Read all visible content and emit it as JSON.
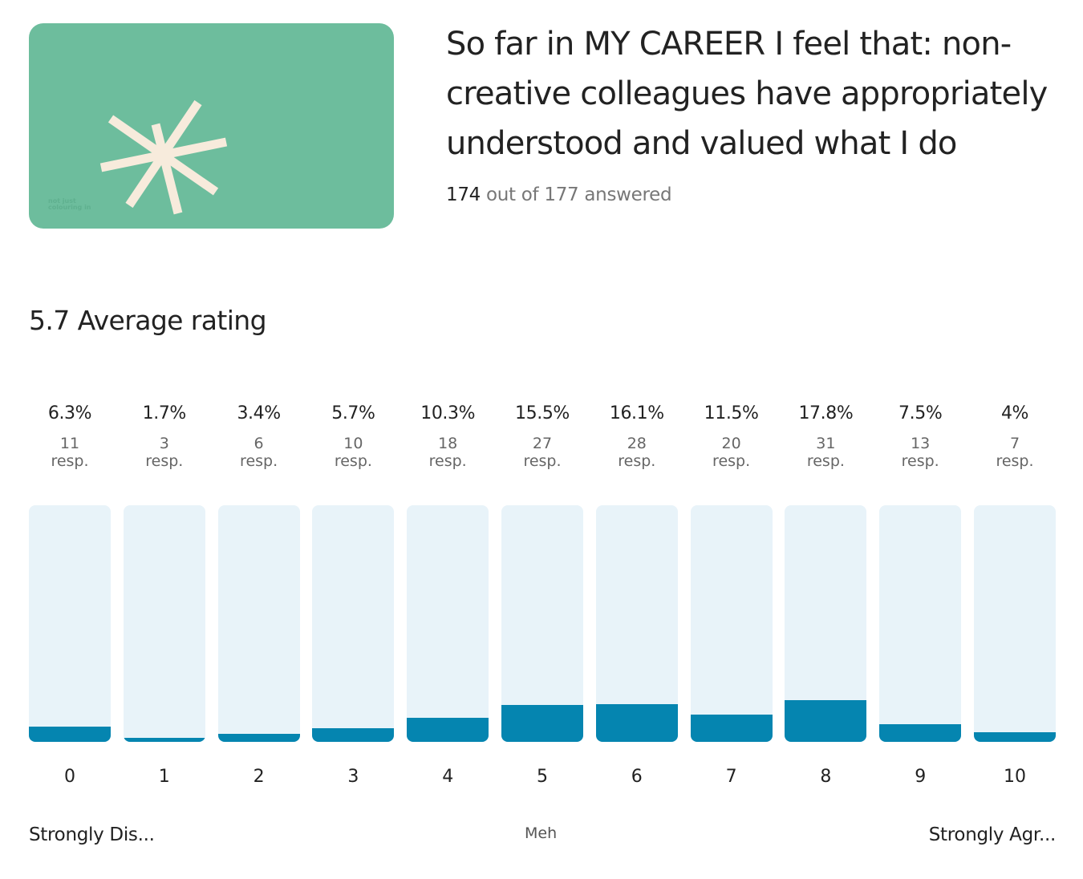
{
  "header": {
    "brand_logo_text": "not just colouring in",
    "title": "So far in MY CAREER I feel that: non-creative colleagues have appropriately understood and valued what I do",
    "answered_count": "174",
    "answered_rest": " out of 177 answered"
  },
  "summary": {
    "average_label": "5.7 Average rating"
  },
  "colors": {
    "card": "#6dbd9d",
    "star": "#f7ebdc",
    "track": "#e8f3f9",
    "fill": "#0585b0"
  },
  "chart_data": {
    "type": "bar",
    "categories": [
      "0",
      "1",
      "2",
      "3",
      "4",
      "5",
      "6",
      "7",
      "8",
      "9",
      "10"
    ],
    "percent_labels": [
      "6.3%",
      "1.7%",
      "3.4%",
      "5.7%",
      "10.3%",
      "15.5%",
      "16.1%",
      "11.5%",
      "17.8%",
      "7.5%",
      "4%"
    ],
    "values": [
      6.3,
      1.7,
      3.4,
      5.7,
      10.3,
      15.5,
      16.1,
      11.5,
      17.8,
      7.5,
      4
    ],
    "counts": [
      "11",
      "3",
      "6",
      "10",
      "18",
      "27",
      "28",
      "20",
      "31",
      "13",
      "7"
    ],
    "count_unit": "resp.",
    "ylim": [
      0,
      100
    ]
  },
  "scale_labels": {
    "low": "Strongly Dis...",
    "mid": "Meh",
    "high": "Strongly Agr..."
  }
}
